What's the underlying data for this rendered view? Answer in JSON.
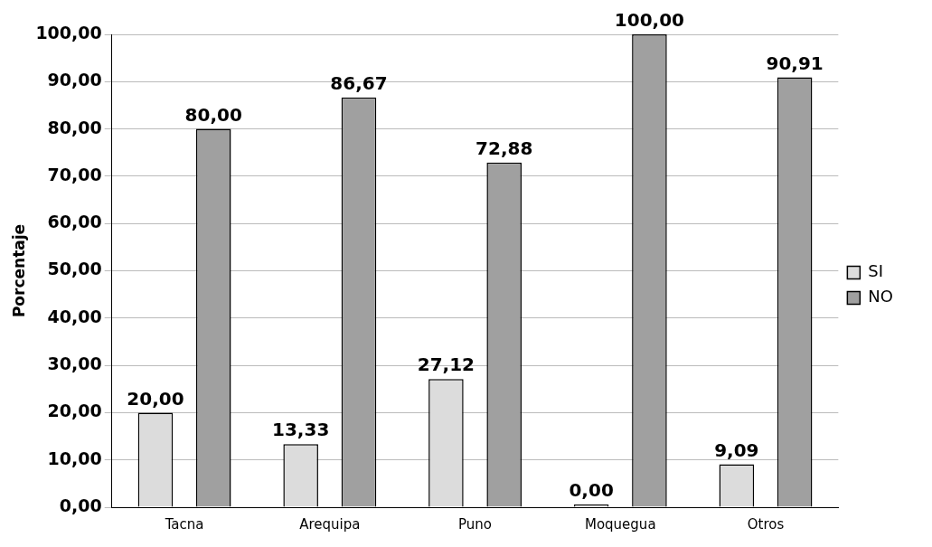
{
  "chart_data": {
    "type": "bar",
    "ylabel": "Porcentaje",
    "categories": [
      "Tacna",
      "Arequipa",
      "Puno",
      "Moquegua",
      "Otros"
    ],
    "series": [
      {
        "name": "SI",
        "color": "#dcdcdc",
        "values": [
          20.0,
          13.33,
          27.12,
          0.0,
          9.09
        ],
        "value_labels": [
          "20,00",
          "13,33",
          "27,12",
          "0,00",
          "9,09"
        ]
      },
      {
        "name": "NO",
        "color": "#a0a0a0",
        "values": [
          80.0,
          86.67,
          72.88,
          100.0,
          90.91
        ],
        "value_labels": [
          "80,00",
          "86,67",
          "72,88",
          "100,00",
          "90,91"
        ]
      }
    ],
    "ylim": [
      0,
      100
    ],
    "yticks": [
      {
        "value": 0,
        "label": "0,00"
      },
      {
        "value": 10,
        "label": "10,00"
      },
      {
        "value": 20,
        "label": "20,00"
      },
      {
        "value": 30,
        "label": "30,00"
      },
      {
        "value": 40,
        "label": "40,00"
      },
      {
        "value": 50,
        "label": "50,00"
      },
      {
        "value": 60,
        "label": "60,00"
      },
      {
        "value": 70,
        "label": "70,00"
      },
      {
        "value": 80,
        "label": "80,00"
      },
      {
        "value": 90,
        "label": "90,00"
      },
      {
        "value": 100,
        "label": "100,00"
      }
    ],
    "grid": "y",
    "legend": "right"
  }
}
